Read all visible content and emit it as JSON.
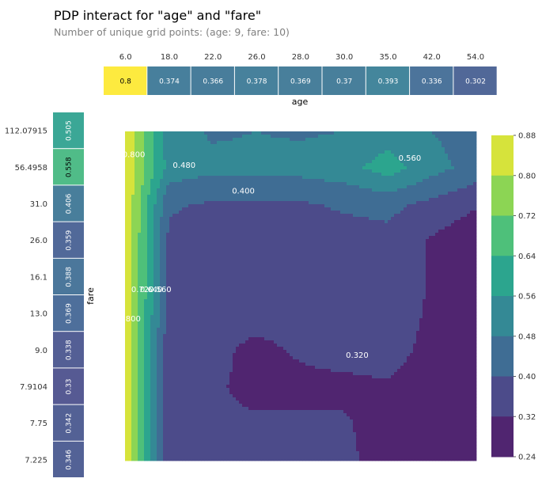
{
  "title": "PDP interact for \"age\" and \"fare\"",
  "subtitle": "Number of unique grid points: (age: 9, fare: 10)",
  "chart_data": [
    {
      "type": "heatmap",
      "name": "age-marginal",
      "xlabel": "age",
      "categories": [
        "6.0",
        "18.0",
        "22.0",
        "26.0",
        "28.0",
        "30.0",
        "35.0",
        "42.0",
        "54.0"
      ],
      "values": [
        0.8,
        0.374,
        0.366,
        0.378,
        0.369,
        0.37,
        0.393,
        0.336,
        0.302
      ],
      "value_labels": [
        "0.8",
        "0.374",
        "0.366",
        "0.378",
        "0.369",
        "0.37",
        "0.393",
        "0.336",
        "0.302"
      ]
    },
    {
      "type": "heatmap",
      "name": "fare-marginal",
      "ylabel": "fare",
      "categories": [
        "112.07915",
        "56.4958",
        "31.0",
        "26.0",
        "16.1",
        "13.0",
        "9.0",
        "7.9104",
        "7.75",
        "7.225"
      ],
      "values": [
        0.505,
        0.558,
        0.406,
        0.359,
        0.388,
        0.369,
        0.338,
        0.33,
        0.342,
        0.346
      ],
      "value_labels": [
        "0.505",
        "0.558",
        "0.406",
        "0.359",
        "0.388",
        "0.369",
        "0.338",
        "0.33",
        "0.342",
        "0.346"
      ]
    },
    {
      "type": "contour",
      "name": "interaction",
      "x_categories": [
        "6.0",
        "18.0",
        "22.0",
        "26.0",
        "28.0",
        "30.0",
        "35.0",
        "42.0",
        "54.0"
      ],
      "y_categories": [
        "7.225",
        "7.75",
        "7.9104",
        "9.0",
        "13.0",
        "16.1",
        "26.0",
        "31.0",
        "56.4958",
        "112.07915"
      ],
      "z_grid": [
        [
          0.88,
          0.34,
          0.33,
          0.33,
          0.33,
          0.34,
          0.28,
          0.26,
          0.24
        ],
        [
          0.88,
          0.34,
          0.33,
          0.33,
          0.33,
          0.33,
          0.28,
          0.26,
          0.24
        ],
        [
          0.88,
          0.34,
          0.33,
          0.3,
          0.3,
          0.3,
          0.31,
          0.26,
          0.24
        ],
        [
          0.88,
          0.34,
          0.34,
          0.3,
          0.33,
          0.35,
          0.36,
          0.29,
          0.25
        ],
        [
          0.88,
          0.36,
          0.35,
          0.35,
          0.35,
          0.35,
          0.36,
          0.31,
          0.25
        ],
        [
          0.88,
          0.38,
          0.37,
          0.37,
          0.37,
          0.37,
          0.38,
          0.31,
          0.25
        ],
        [
          0.88,
          0.38,
          0.37,
          0.37,
          0.37,
          0.37,
          0.38,
          0.31,
          0.26
        ],
        [
          0.88,
          0.41,
          0.39,
          0.39,
          0.39,
          0.41,
          0.42,
          0.38,
          0.33
        ],
        [
          0.88,
          0.53,
          0.5,
          0.5,
          0.51,
          0.53,
          0.6,
          0.51,
          0.45
        ],
        [
          0.88,
          0.51,
          0.47,
          0.48,
          0.47,
          0.48,
          0.52,
          0.48,
          0.44
        ]
      ],
      "contour_labels": [
        {
          "text": "0.480",
          "x": 1.35,
          "y": 9.0
        },
        {
          "text": "0.480",
          "x": 1.35,
          "y": 8.0
        },
        {
          "text": "0.400",
          "x": 2.7,
          "y": 7.3
        },
        {
          "text": "0.560",
          "x": 6.5,
          "y": 8.2
        },
        {
          "text": "0.800",
          "x": 0.2,
          "y": 8.3
        },
        {
          "text": "0.800",
          "x": 0.1,
          "y": 3.8
        },
        {
          "text": "0.720",
          "x": 0.4,
          "y": 4.6
        },
        {
          "text": "0.640",
          "x": 0.6,
          "y": 4.6
        },
        {
          "text": "0.560",
          "x": 0.8,
          "y": 4.6
        },
        {
          "text": "0.320",
          "x": 5.3,
          "y": 2.8
        }
      ],
      "colorbar": {
        "ticks": [
          "0.88",
          "0.80",
          "0.72",
          "0.64",
          "0.56",
          "0.48",
          "0.40",
          "0.32",
          "0.24"
        ],
        "min": 0.24,
        "max": 0.88
      }
    }
  ]
}
